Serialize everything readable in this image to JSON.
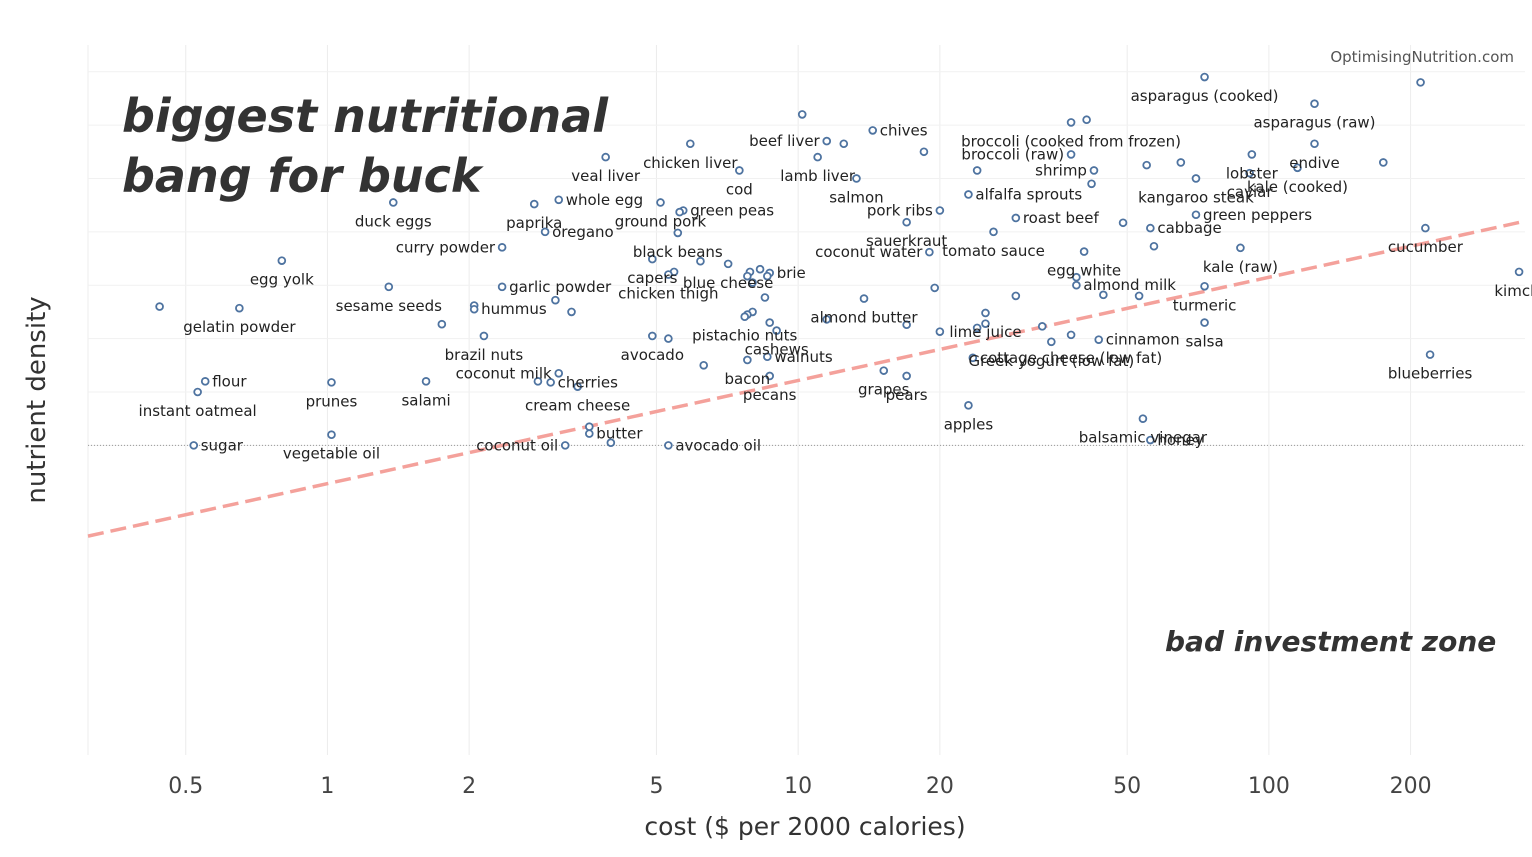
{
  "chart_data": {
    "type": "scatter",
    "title": "biggest nutritional bang for buck",
    "source": "OptimisingNutrition.com",
    "annotation": "bad investment zone",
    "xlabel": "cost ($ per 2000 calories)",
    "ylabel": "nutrient density",
    "x_scale": "log",
    "xlim": [
      0.31,
      350
    ],
    "ylim": [
      -0.08,
      1.25
    ],
    "x_ticks": [
      0.5,
      1,
      2,
      5,
      10,
      20,
      50,
      100,
      200
    ],
    "x_tick_labels": [
      "0.5",
      "1",
      "2",
      "5",
      "10",
      "20",
      "50",
      "100",
      "200"
    ],
    "grid": true,
    "trendline": {
      "style": "dashed",
      "color": "#f4a19b",
      "x": [
        0.31,
        350
      ],
      "y": [
        0.33,
        0.92
      ]
    },
    "marker_color": "#4e73a0",
    "points": [
      {
        "x": 73,
        "y": 1.19,
        "label": "asparagus (cooked)"
      },
      {
        "x": 210,
        "y": 1.18,
        "label": ""
      },
      {
        "x": 125,
        "y": 1.14,
        "label": "asparagus (raw)"
      },
      {
        "x": 10.2,
        "y": 1.12,
        "label": ""
      },
      {
        "x": 41,
        "y": 1.11,
        "label": ""
      },
      {
        "x": 38,
        "y": 1.105,
        "label": "broccoli (cooked from frozen)"
      },
      {
        "x": 14.4,
        "y": 1.09,
        "label": "chives"
      },
      {
        "x": 11.5,
        "y": 1.07,
        "label": "beef liver"
      },
      {
        "x": 12.5,
        "y": 1.065,
        "label": ""
      },
      {
        "x": 5.9,
        "y": 1.065,
        "label": "chicken liver"
      },
      {
        "x": 125,
        "y": 1.065,
        "label": "endive"
      },
      {
        "x": 18.5,
        "y": 1.05,
        "label": ""
      },
      {
        "x": 38,
        "y": 1.045,
        "label": "broccoli (raw)"
      },
      {
        "x": 92,
        "y": 1.045,
        "label": "lobster"
      },
      {
        "x": 3.9,
        "y": 1.04,
        "label": "veal liver"
      },
      {
        "x": 11,
        "y": 1.04,
        "label": "lamb liver"
      },
      {
        "x": 65,
        "y": 1.03,
        "label": ""
      },
      {
        "x": 175,
        "y": 1.03,
        "label": ""
      },
      {
        "x": 55,
        "y": 1.025,
        "label": ""
      },
      {
        "x": 115,
        "y": 1.02,
        "label": "kale (cooked)"
      },
      {
        "x": 7.5,
        "y": 1.015,
        "label": "cod"
      },
      {
        "x": 24,
        "y": 1.015,
        "label": ""
      },
      {
        "x": 42.5,
        "y": 1.015,
        "label": "shrimp"
      },
      {
        "x": 91,
        "y": 1.01,
        "label": "caviar"
      },
      {
        "x": 13.3,
        "y": 1.0,
        "label": "salmon"
      },
      {
        "x": 70,
        "y": 1.0,
        "label": "kangaroo steak"
      },
      {
        "x": 42,
        "y": 0.99,
        "label": ""
      },
      {
        "x": 23,
        "y": 0.97,
        "label": "alfalfa sprouts"
      },
      {
        "x": 3.1,
        "y": 0.96,
        "label": "whole egg"
      },
      {
        "x": 1.38,
        "y": 0.955,
        "label": "duck eggs"
      },
      {
        "x": 5.1,
        "y": 0.955,
        "label": "ground pork"
      },
      {
        "x": 2.75,
        "y": 0.952,
        "label": "paprika"
      },
      {
        "x": 5.7,
        "y": 0.94,
        "label": "green peas"
      },
      {
        "x": 5.6,
        "y": 0.937,
        "label": ""
      },
      {
        "x": 20,
        "y": 0.94,
        "label": "pork ribs"
      },
      {
        "x": 70,
        "y": 0.932,
        "label": "green peppers"
      },
      {
        "x": 29,
        "y": 0.926,
        "label": "roast beef"
      },
      {
        "x": 49,
        "y": 0.917,
        "label": ""
      },
      {
        "x": 17,
        "y": 0.918,
        "label": "sauerkraut"
      },
      {
        "x": 2.9,
        "y": 0.9,
        "label": "oregano"
      },
      {
        "x": 5.55,
        "y": 0.898,
        "label": "black beans"
      },
      {
        "x": 56,
        "y": 0.907,
        "label": "cabbage"
      },
      {
        "x": 26,
        "y": 0.9,
        "label": "tomato sauce"
      },
      {
        "x": 215,
        "y": 0.907,
        "label": "cucumber"
      },
      {
        "x": 2.35,
        "y": 0.871,
        "label": "curry powder"
      },
      {
        "x": 57,
        "y": 0.873,
        "label": ""
      },
      {
        "x": 87,
        "y": 0.87,
        "label": "kale (raw)"
      },
      {
        "x": 40.5,
        "y": 0.863,
        "label": "egg white"
      },
      {
        "x": 19,
        "y": 0.862,
        "label": "coconut water"
      },
      {
        "x": 4.9,
        "y": 0.849,
        "label": "capers"
      },
      {
        "x": 0.8,
        "y": 0.846,
        "label": "egg yolk"
      },
      {
        "x": 6.2,
        "y": 0.845,
        "label": ""
      },
      {
        "x": 7.1,
        "y": 0.84,
        "label": "blue cheese"
      },
      {
        "x": 8.3,
        "y": 0.83,
        "label": ""
      },
      {
        "x": 5.45,
        "y": 0.825,
        "label": ""
      },
      {
        "x": 7.9,
        "y": 0.825,
        "label": ""
      },
      {
        "x": 8.7,
        "y": 0.823,
        "label": "brie"
      },
      {
        "x": 5.3,
        "y": 0.82,
        "label": "chicken thigh"
      },
      {
        "x": 7.8,
        "y": 0.817,
        "label": ""
      },
      {
        "x": 8.6,
        "y": 0.817,
        "label": ""
      },
      {
        "x": 340,
        "y": 0.825,
        "label": "kimchi"
      },
      {
        "x": 39,
        "y": 0.815,
        "label": ""
      },
      {
        "x": 8.0,
        "y": 0.805,
        "label": ""
      },
      {
        "x": 39,
        "y": 0.8,
        "label": "almond milk"
      },
      {
        "x": 73,
        "y": 0.798,
        "label": "turmeric"
      },
      {
        "x": 2.35,
        "y": 0.797,
        "label": "garlic powder"
      },
      {
        "x": 1.35,
        "y": 0.797,
        "label": "sesame seeds"
      },
      {
        "x": 19.5,
        "y": 0.795,
        "label": ""
      },
      {
        "x": 44.5,
        "y": 0.782,
        "label": ""
      },
      {
        "x": 53,
        "y": 0.78,
        "label": ""
      },
      {
        "x": 29,
        "y": 0.78,
        "label": ""
      },
      {
        "x": 8.5,
        "y": 0.777,
        "label": ""
      },
      {
        "x": 3.05,
        "y": 0.772,
        "label": ""
      },
      {
        "x": 13.8,
        "y": 0.775,
        "label": "almond butter"
      },
      {
        "x": 0.44,
        "y": 0.76,
        "label": ""
      },
      {
        "x": 2.05,
        "y": 0.762,
        "label": ""
      },
      {
        "x": 2.05,
        "y": 0.755,
        "label": "hummus"
      },
      {
        "x": 0.65,
        "y": 0.757,
        "label": "gelatin powder"
      },
      {
        "x": 3.3,
        "y": 0.75,
        "label": ""
      },
      {
        "x": 8.0,
        "y": 0.75,
        "label": ""
      },
      {
        "x": 7.8,
        "y": 0.745,
        "label": ""
      },
      {
        "x": 7.7,
        "y": 0.741,
        "label": "pistachio nuts"
      },
      {
        "x": 25,
        "y": 0.748,
        "label": "lime juice"
      },
      {
        "x": 11.5,
        "y": 0.736,
        "label": ""
      },
      {
        "x": 8.7,
        "y": 0.73,
        "label": ""
      },
      {
        "x": 1.75,
        "y": 0.727,
        "label": ""
      },
      {
        "x": 25,
        "y": 0.728,
        "label": ""
      },
      {
        "x": 17,
        "y": 0.726,
        "label": ""
      },
      {
        "x": 73,
        "y": 0.73,
        "label": "salsa"
      },
      {
        "x": 33,
        "y": 0.723,
        "label": ""
      },
      {
        "x": 24,
        "y": 0.72,
        "label": ""
      },
      {
        "x": 9.0,
        "y": 0.715,
        "label": "cashews"
      },
      {
        "x": 20,
        "y": 0.713,
        "label": ""
      },
      {
        "x": 2.15,
        "y": 0.705,
        "label": "brazil nuts"
      },
      {
        "x": 4.9,
        "y": 0.705,
        "label": "avocado"
      },
      {
        "x": 5.3,
        "y": 0.7,
        "label": ""
      },
      {
        "x": 38,
        "y": 0.707,
        "label": ""
      },
      {
        "x": 43.5,
        "y": 0.698,
        "label": "cinnamon"
      },
      {
        "x": 34.5,
        "y": 0.694,
        "label": "Greek yogurt (low fat)"
      },
      {
        "x": 220,
        "y": 0.67,
        "label": "blueberries"
      },
      {
        "x": 8.6,
        "y": 0.666,
        "label": "walnuts"
      },
      {
        "x": 23.5,
        "y": 0.664,
        "label": "cottage cheese (low fat)"
      },
      {
        "x": 7.8,
        "y": 0.66,
        "label": "bacon"
      },
      {
        "x": 6.3,
        "y": 0.65,
        "label": ""
      },
      {
        "x": 15.2,
        "y": 0.64,
        "label": "grapes"
      },
      {
        "x": 3.1,
        "y": 0.635,
        "label": "coconut milk"
      },
      {
        "x": 8.7,
        "y": 0.63,
        "label": "pecans"
      },
      {
        "x": 17,
        "y": 0.63,
        "label": "pears"
      },
      {
        "x": 0.55,
        "y": 0.62,
        "label": "flour"
      },
      {
        "x": 1.02,
        "y": 0.618,
        "label": "prunes"
      },
      {
        "x": 1.62,
        "y": 0.62,
        "label": "salami"
      },
      {
        "x": 2.8,
        "y": 0.62,
        "label": ""
      },
      {
        "x": 2.98,
        "y": 0.618,
        "label": "cherries"
      },
      {
        "x": 3.4,
        "y": 0.61,
        "label": "cream cheese"
      },
      {
        "x": 0.53,
        "y": 0.6,
        "label": "instant oatmeal"
      },
      {
        "x": 23,
        "y": 0.575,
        "label": "apples"
      },
      {
        "x": 54,
        "y": 0.55,
        "label": "balsamic vinegar"
      },
      {
        "x": 3.6,
        "y": 0.535,
        "label": ""
      },
      {
        "x": 3.6,
        "y": 0.522,
        "label": "butter"
      },
      {
        "x": 1.02,
        "y": 0.52,
        "label": "vegetable oil"
      },
      {
        "x": 56,
        "y": 0.51,
        "label": "honey"
      },
      {
        "x": 4.0,
        "y": 0.505,
        "label": ""
      },
      {
        "x": 0.52,
        "y": 0.5,
        "label": "sugar"
      },
      {
        "x": 3.2,
        "y": 0.5,
        "label": "coconut oil"
      },
      {
        "x": 5.3,
        "y": 0.5,
        "label": "avocado oil"
      }
    ]
  },
  "labels": {
    "title_line1": "biggest nutritional",
    "title_line2": "bang for buck",
    "source": "OptimisingNutrition.com",
    "zone": "bad investment zone",
    "xlabel": "cost ($ per 2000 calories)",
    "ylabel": "nutrient density"
  }
}
